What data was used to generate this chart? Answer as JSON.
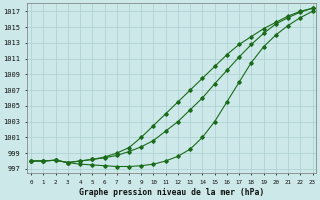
{
  "title": "Graphe pression niveau de la mer (hPa)",
  "xlabel_hours": [
    0,
    1,
    2,
    3,
    4,
    5,
    6,
    7,
    8,
    9,
    10,
    11,
    12,
    13,
    14,
    15,
    16,
    17,
    18,
    19,
    20,
    21,
    22,
    23
  ],
  "ylim": [
    996.5,
    1018.0
  ],
  "yticks": [
    997,
    999,
    1001,
    1003,
    1005,
    1007,
    1009,
    1011,
    1013,
    1015,
    1017
  ],
  "background_color": "#cce8e8",
  "grid_color": "#aacfcf",
  "line_color": "#1a6b1a",
  "curve1": [
    998.0,
    998.0,
    998.1,
    997.8,
    998.0,
    998.2,
    998.4,
    998.7,
    999.2,
    999.8,
    1000.6,
    1001.8,
    1003.0,
    1004.5,
    1006.0,
    1007.8,
    1009.5,
    1011.2,
    1012.8,
    1014.2,
    1015.4,
    1016.2,
    1016.9,
    1017.4
  ],
  "curve2": [
    998.0,
    998.0,
    998.1,
    997.8,
    998.0,
    998.2,
    998.5,
    999.0,
    999.7,
    1001.0,
    1002.5,
    1004.0,
    1005.5,
    1007.0,
    1008.5,
    1010.0,
    1011.5,
    1012.8,
    1013.8,
    1014.8,
    1015.6,
    1016.4,
    1017.0,
    1017.4
  ],
  "curve3": [
    998.0,
    998.0,
    998.1,
    997.8,
    997.6,
    997.5,
    997.4,
    997.3,
    997.3,
    997.4,
    997.6,
    998.0,
    998.6,
    999.5,
    1001.0,
    1003.0,
    1005.5,
    1008.0,
    1010.5,
    1012.5,
    1014.0,
    1015.2,
    1016.2,
    1017.0
  ]
}
